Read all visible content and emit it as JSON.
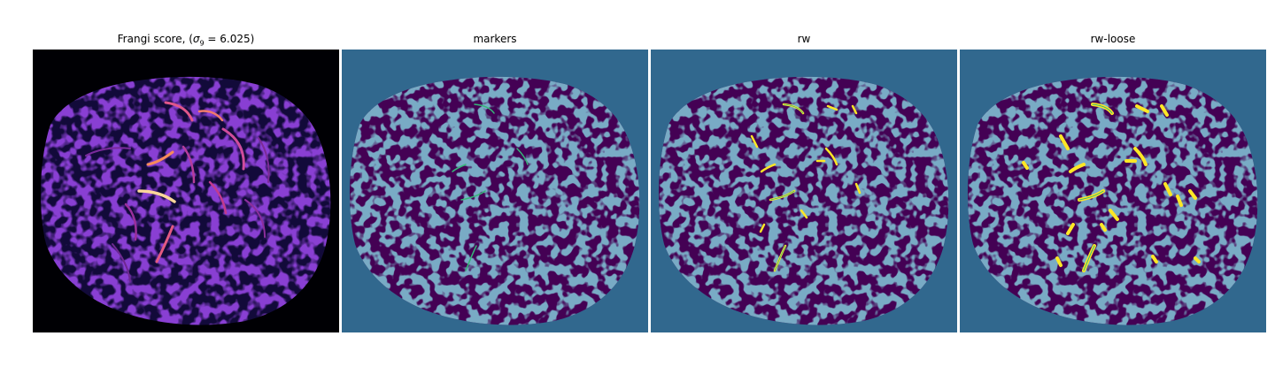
{
  "figure": {
    "panels": [
      {
        "id": "frangi",
        "title_prefix": "Frangi score, (",
        "title_symbol": "σ",
        "title_subscript": "9",
        "title_suffix": " = 6.025)",
        "colormap": "magma",
        "background_color": "#000000"
      },
      {
        "id": "markers",
        "title": "markers",
        "background_color": "#31688e",
        "foreground_color": "#440154",
        "highlight_color": "#35b779"
      },
      {
        "id": "rw",
        "title": "rw",
        "background_color": "#31688e",
        "foreground_color": "#440154",
        "highlight_color": "#fde725"
      },
      {
        "id": "rw-loose",
        "title": "rw-loose",
        "background_color": "#31688e",
        "foreground_color": "#440154",
        "highlight_color": "#fde725"
      }
    ]
  }
}
